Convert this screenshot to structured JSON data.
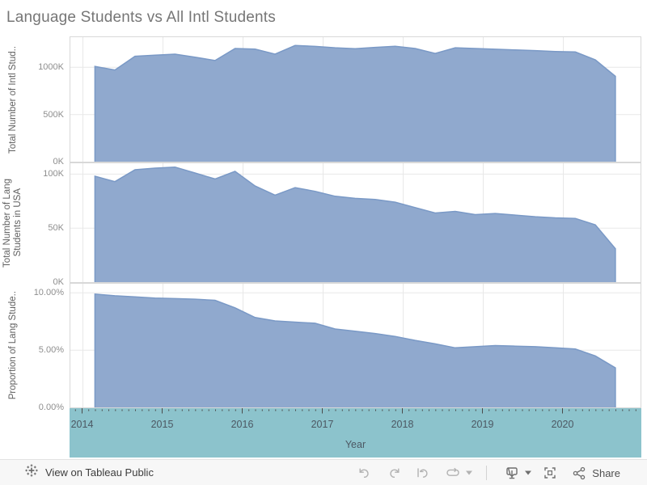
{
  "title": "Language Students vs All Intl Students",
  "colors": {
    "area_fill": "#90A9CE",
    "area_stroke": "#7A99C6",
    "band_bg": "#8CC3CC",
    "band_text": "#4C5863",
    "grid": "#E8E8E8",
    "panel_border": "#D8D8D8",
    "tick_label": "#8E8E8E",
    "axis_title": "#5F5F5F",
    "title_color": "#767676",
    "tick_mark": "#4A4A4A",
    "icon_disabled": "#B2B2B2",
    "icon_active": "#6E6E6E"
  },
  "chart_data": {
    "type": "area",
    "title": "Language Students vs All Intl Students",
    "xlabel": "Year",
    "x_tick_labels": [
      "2014",
      "2015",
      "2016",
      "2017",
      "2018",
      "2019",
      "2020"
    ],
    "x_tick_values": [
      2014,
      2015,
      2016,
      2017,
      2018,
      2019,
      2020
    ],
    "x": [
      2014.15,
      2014.4,
      2014.65,
      2014.9,
      2015.15,
      2015.4,
      2015.65,
      2015.9,
      2016.15,
      2016.4,
      2016.65,
      2016.9,
      2017.15,
      2017.4,
      2017.65,
      2017.9,
      2018.15,
      2018.4,
      2018.65,
      2018.9,
      2019.15,
      2019.4,
      2019.65,
      2019.9,
      2020.15,
      2020.4,
      2020.65
    ],
    "panels": [
      {
        "ylabel_lines": [
          "Total Number of Intl Stud.."
        ],
        "units": "thousands",
        "ylim": [
          0,
          1320
        ],
        "yticks": [
          {
            "v": 0,
            "label": "0K"
          },
          {
            "v": 500,
            "label": "500K"
          },
          {
            "v": 1000,
            "label": "1000K"
          }
        ],
        "values": [
          1010,
          972,
          1118,
          1130,
          1140,
          1108,
          1072,
          1200,
          1193,
          1140,
          1232,
          1222,
          1208,
          1198,
          1212,
          1223,
          1200,
          1148,
          1208,
          1200,
          1192,
          1185,
          1178,
          1168,
          1163,
          1080,
          905
        ]
      },
      {
        "ylabel_lines": [
          "Total Number of Lang",
          "Students in USA"
        ],
        "units": "thousands",
        "ylim": [
          0,
          110
        ],
        "yticks": [
          {
            "v": 0,
            "label": "0K"
          },
          {
            "v": 50,
            "label": "50K"
          },
          {
            "v": 100,
            "label": "100K"
          }
        ],
        "values": [
          98,
          93,
          104,
          105.5,
          106.5,
          101,
          95.5,
          102.5,
          89,
          80.5,
          87.5,
          84,
          79.5,
          77.5,
          76.5,
          74,
          69,
          64,
          65.5,
          62.5,
          63.5,
          62,
          60.5,
          59.5,
          59,
          53,
          31
        ]
      },
      {
        "ylabel_lines": [
          "Proportion of Lang Stude.."
        ],
        "units": "percent",
        "ylim": [
          0,
          10.8
        ],
        "yticks": [
          {
            "v": 0,
            "label": "0.00%"
          },
          {
            "v": 5,
            "label": "5.00%"
          },
          {
            "v": 10,
            "label": "10.00%"
          }
        ],
        "values": [
          9.9,
          9.75,
          9.65,
          9.55,
          9.5,
          9.45,
          9.35,
          8.7,
          7.85,
          7.55,
          7.45,
          7.35,
          6.85,
          6.65,
          6.45,
          6.2,
          5.85,
          5.55,
          5.2,
          5.3,
          5.4,
          5.35,
          5.3,
          5.2,
          5.1,
          4.5,
          3.45
        ]
      }
    ]
  },
  "toolbar": {
    "view_on_label": "View on Tableau Public",
    "share_label": "Share",
    "icons": [
      "tableau-logo",
      "undo",
      "redo",
      "revert",
      "refresh",
      "caret-down",
      "download",
      "caret-down",
      "fit-fullscreen",
      "share-nodes"
    ]
  }
}
